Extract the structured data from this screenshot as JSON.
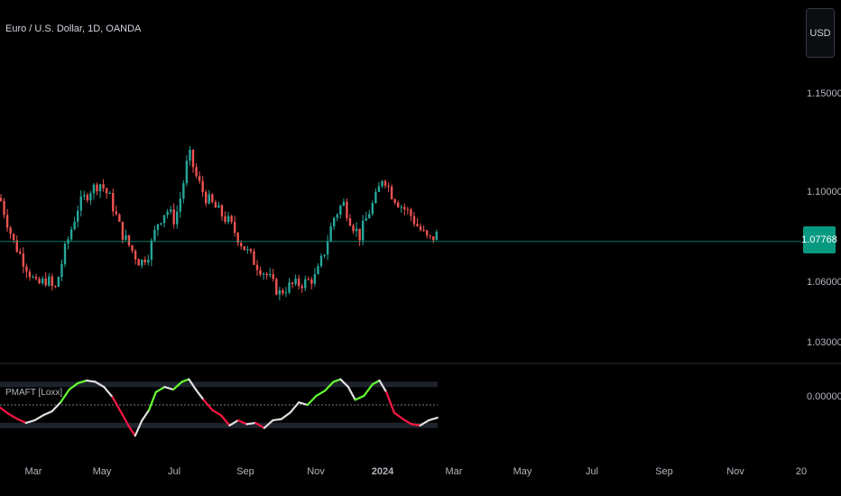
{
  "symbol": "Euro / U.S. Dollar, 1D, OANDA",
  "currency_button": "USD",
  "indicator_label": "PMAFT [Loxx]",
  "last_price": "1.07768",
  "colors": {
    "up_candle": "#26a69a",
    "down_candle": "#ef5350",
    "price_line": "#089981",
    "osc_rising": "#66ff33",
    "osc_falling": "#ff1744",
    "osc_neutral": "#e0e0e0"
  },
  "chart_data": [
    {
      "type": "candlestick",
      "title": "Euro / U.S. Dollar, 1D, OANDA",
      "ylim": [
        1.015,
        1.165
      ],
      "y_ticks": [
        "1.15000",
        "1.10000",
        "1.06000",
        "1.03000"
      ],
      "x_ticks": [
        "Mar",
        "May",
        "Jul",
        "Sep",
        "Nov",
        "2024",
        "Mar",
        "May",
        "Jul",
        "Sep",
        "Nov",
        "20"
      ],
      "last_price": 1.07768,
      "close_path": [
        {
          "x": 0.0,
          "y": 1.097
        },
        {
          "x": 1.5,
          "y": 1.078
        },
        {
          "x": 3.0,
          "y": 1.067
        },
        {
          "x": 4.2,
          "y": 1.058
        },
        {
          "x": 5.5,
          "y": 1.061
        },
        {
          "x": 6.3,
          "y": 1.055
        },
        {
          "x": 7.5,
          "y": 1.074
        },
        {
          "x": 9.0,
          "y": 1.093
        },
        {
          "x": 10.5,
          "y": 1.101
        },
        {
          "x": 11.6,
          "y": 1.104
        },
        {
          "x": 12.8,
          "y": 1.096
        },
        {
          "x": 14.0,
          "y": 1.082
        },
        {
          "x": 15.2,
          "y": 1.074
        },
        {
          "x": 16.2,
          "y": 1.068
        },
        {
          "x": 17.2,
          "y": 1.073
        },
        {
          "x": 18.2,
          "y": 1.086
        },
        {
          "x": 19.2,
          "y": 1.092
        },
        {
          "x": 20.2,
          "y": 1.087
        },
        {
          "x": 21.0,
          "y": 1.1
        },
        {
          "x": 21.8,
          "y": 1.12
        },
        {
          "x": 22.6,
          "y": 1.108
        },
        {
          "x": 23.6,
          "y": 1.098
        },
        {
          "x": 25.0,
          "y": 1.092
        },
        {
          "x": 26.5,
          "y": 1.086
        },
        {
          "x": 28.0,
          "y": 1.076
        },
        {
          "x": 29.5,
          "y": 1.068
        },
        {
          "x": 31.0,
          "y": 1.062
        },
        {
          "x": 32.2,
          "y": 1.054
        },
        {
          "x": 33.5,
          "y": 1.058
        },
        {
          "x": 35.0,
          "y": 1.059
        },
        {
          "x": 36.5,
          "y": 1.062
        },
        {
          "x": 37.5,
          "y": 1.074
        },
        {
          "x": 38.5,
          "y": 1.088
        },
        {
          "x": 39.6,
          "y": 1.095
        },
        {
          "x": 40.6,
          "y": 1.086
        },
        {
          "x": 41.5,
          "y": 1.08
        },
        {
          "x": 42.5,
          "y": 1.09
        },
        {
          "x": 43.5,
          "y": 1.098
        },
        {
          "x": 44.2,
          "y": 1.108
        },
        {
          "x": 45.2,
          "y": 1.099
        },
        {
          "x": 46.2,
          "y": 1.094
        },
        {
          "x": 47.3,
          "y": 1.09
        },
        {
          "x": 48.3,
          "y": 1.084
        },
        {
          "x": 49.5,
          "y": 1.078
        },
        {
          "x": 50.5,
          "y": 1.081
        }
      ]
    },
    {
      "type": "line",
      "title": "PMAFT [Loxx]",
      "y_ticks": [
        "0.00000"
      ],
      "ylim": [
        -1.3,
        1.3
      ],
      "levels": [
        0.8,
        0.0,
        -0.8
      ],
      "series_path": [
        {
          "x": 0.0,
          "y": -0.1
        },
        {
          "x": 1.0,
          "y": -0.35
        },
        {
          "x": 2.0,
          "y": -0.55
        },
        {
          "x": 3.0,
          "y": -0.7
        },
        {
          "x": 4.0,
          "y": -0.6
        },
        {
          "x": 5.0,
          "y": -0.4
        },
        {
          "x": 6.0,
          "y": -0.25
        },
        {
          "x": 7.0,
          "y": 0.1
        },
        {
          "x": 8.0,
          "y": 0.6
        },
        {
          "x": 9.0,
          "y": 0.85
        },
        {
          "x": 10.0,
          "y": 0.95
        },
        {
          "x": 11.0,
          "y": 0.9
        },
        {
          "x": 12.0,
          "y": 0.7
        },
        {
          "x": 13.0,
          "y": 0.3
        },
        {
          "x": 14.0,
          "y": -0.3
        },
        {
          "x": 15.0,
          "y": -0.9
        },
        {
          "x": 15.6,
          "y": -1.2
        },
        {
          "x": 16.4,
          "y": -0.6
        },
        {
          "x": 17.2,
          "y": -0.2
        },
        {
          "x": 18.0,
          "y": 0.5
        },
        {
          "x": 19.0,
          "y": 0.7
        },
        {
          "x": 20.0,
          "y": 0.6
        },
        {
          "x": 21.0,
          "y": 0.9
        },
        {
          "x": 21.8,
          "y": 1.0
        },
        {
          "x": 22.6,
          "y": 0.6
        },
        {
          "x": 23.5,
          "y": 0.2
        },
        {
          "x": 24.5,
          "y": -0.2
        },
        {
          "x": 25.5,
          "y": -0.4
        },
        {
          "x": 26.5,
          "y": -0.8
        },
        {
          "x": 27.5,
          "y": -0.6
        },
        {
          "x": 28.5,
          "y": -0.75
        },
        {
          "x": 29.5,
          "y": -0.7
        },
        {
          "x": 30.5,
          "y": -0.9
        },
        {
          "x": 31.5,
          "y": -0.6
        },
        {
          "x": 32.5,
          "y": -0.55
        },
        {
          "x": 33.5,
          "y": -0.3
        },
        {
          "x": 34.5,
          "y": 0.1
        },
        {
          "x": 35.5,
          "y": 0.0
        },
        {
          "x": 36.5,
          "y": 0.35
        },
        {
          "x": 37.5,
          "y": 0.55
        },
        {
          "x": 38.5,
          "y": 0.9
        },
        {
          "x": 39.3,
          "y": 1.0
        },
        {
          "x": 40.2,
          "y": 0.7
        },
        {
          "x": 41.0,
          "y": 0.2
        },
        {
          "x": 42.0,
          "y": 0.35
        },
        {
          "x": 43.0,
          "y": 0.8
        },
        {
          "x": 43.8,
          "y": 0.95
        },
        {
          "x": 44.6,
          "y": 0.5
        },
        {
          "x": 45.5,
          "y": -0.3
        },
        {
          "x": 46.5,
          "y": -0.55
        },
        {
          "x": 47.5,
          "y": -0.75
        },
        {
          "x": 48.5,
          "y": -0.8
        },
        {
          "x": 49.5,
          "y": -0.6
        },
        {
          "x": 50.5,
          "y": -0.5
        }
      ]
    }
  ]
}
